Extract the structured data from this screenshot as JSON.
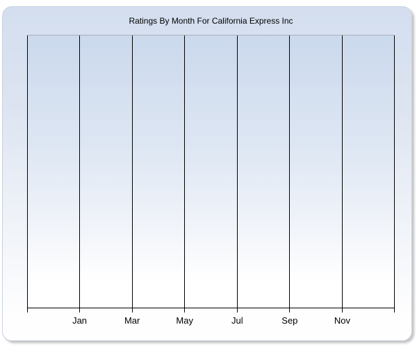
{
  "chart_data": {
    "type": "line",
    "title": "Ratings By Month For California Express Inc",
    "series": [],
    "legend": "none",
    "grid": "vertical-only",
    "x_axis": {
      "gridline_count": 8,
      "first_labeled_gridline": 1,
      "tick_labels": [
        "Jan",
        "Mar",
        "May",
        "Jul",
        "Sep",
        "Nov"
      ]
    },
    "y_axis": {
      "tick_labels": []
    }
  },
  "colors": {
    "page_background": "#ffffff",
    "panel_gradient_top": "#d3deef",
    "panel_gradient_bottom": "#ffffff",
    "panel_border": "#c9d1de",
    "plot_gradient_top": "#cbd9ed",
    "plot_gradient_bottom": "#ffffff",
    "plot_top_border": "#a7aeb9",
    "gridline": "#000000",
    "axis_line": "#000000",
    "text": "#000000"
  }
}
